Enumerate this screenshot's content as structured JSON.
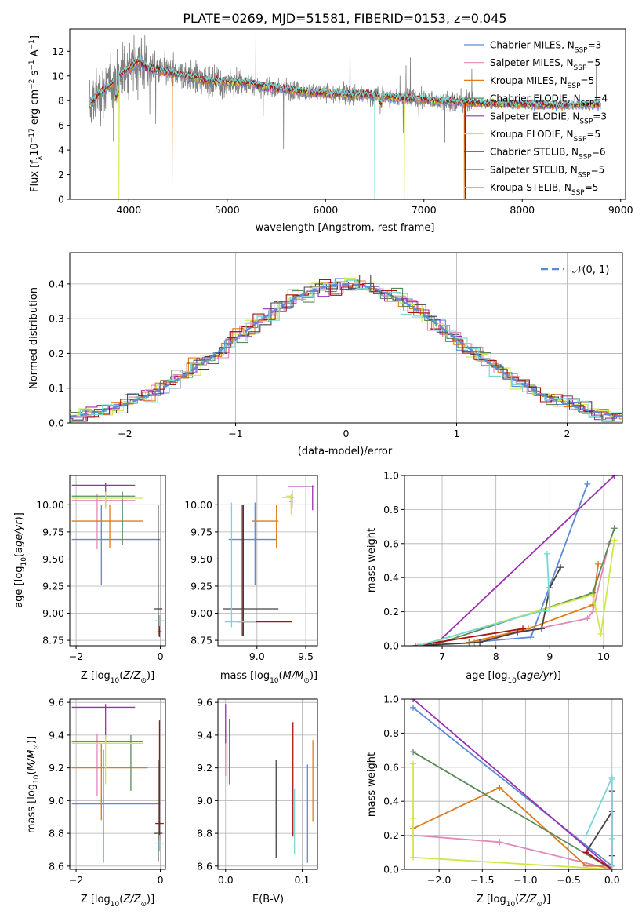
{
  "title": "PLATE=0269, MJD=51581, FIBERID=0153, z=0.045",
  "colors": {
    "chabrier_miles": "#5b8ad7",
    "salpeter_miles": "#e389b9",
    "kroupa_miles": "#e07b1a",
    "chabrier_elodie": "#5a8a5a",
    "salpeter_elodie": "#9b30b0",
    "kroupa_elodie": "#d2e64a",
    "chabrier_stelib": "#444444",
    "salpeter_stelib": "#aa1111",
    "kroupa_stelib": "#7ad6d6",
    "data": "#808080"
  },
  "chart_data": [
    {
      "type": "line",
      "id": "spectrum",
      "xlabel": "wavelength [Angstrom, rest frame]",
      "ylabel": "Flux [f_λ10^-17 erg cm^-2 s^-1 A^-1]",
      "xlim": [
        3400,
        9050
      ],
      "ylim": [
        0,
        13.8
      ],
      "xticks": [
        4000,
        5000,
        6000,
        7000,
        8000,
        9000
      ],
      "yticks": [
        0,
        2,
        4,
        6,
        8,
        10,
        12
      ],
      "legend_position": "top-right",
      "legend": [
        {
          "imf": "Chabrier",
          "lib": "MILES",
          "nssp": "3",
          "color_key": "chabrier_miles"
        },
        {
          "imf": "Salpeter",
          "lib": "MILES",
          "nssp": "5",
          "color_key": "salpeter_miles"
        },
        {
          "imf": "Kroupa",
          "lib": "MILES",
          "nssp": "5",
          "color_key": "kroupa_miles"
        },
        {
          "imf": "Chabrier",
          "lib": "ELODIE",
          "nssp": "4",
          "color_key": "chabrier_elodie"
        },
        {
          "imf": "Salpeter",
          "lib": "ELODIE",
          "nssp": "3",
          "color_key": "salpeter_elodie"
        },
        {
          "imf": "Kroupa",
          "lib": "ELODIE",
          "nssp": "5",
          "color_key": "kroupa_elodie"
        },
        {
          "imf": "Chabrier",
          "lib": "STELIB",
          "nssp": "6",
          "color_key": "chabrier_stelib"
        },
        {
          "imf": "Salpeter",
          "lib": "STELIB",
          "nssp": "5",
          "color_key": "salpeter_stelib"
        },
        {
          "imf": "Kroupa",
          "lib": "STELIB",
          "nssp": "5",
          "color_key": "kroupa_stelib"
        }
      ],
      "data_continuum": [
        [
          3620,
          7.8
        ],
        [
          3700,
          8.6
        ],
        [
          3800,
          9.2
        ],
        [
          3900,
          10.0
        ],
        [
          4000,
          10.6
        ],
        [
          4100,
          11.2
        ],
        [
          4200,
          10.6
        ],
        [
          4400,
          10.3
        ],
        [
          4600,
          10.0
        ],
        [
          4800,
          9.6
        ],
        [
          5000,
          9.5
        ],
        [
          5200,
          9.4
        ],
        [
          5400,
          9.1
        ],
        [
          5600,
          8.9
        ],
        [
          5800,
          8.7
        ],
        [
          6000,
          8.6
        ],
        [
          6200,
          8.5
        ],
        [
          6500,
          8.4
        ],
        [
          6800,
          8.2
        ],
        [
          7000,
          8.1
        ],
        [
          7300,
          7.9
        ],
        [
          7600,
          7.8
        ],
        [
          8000,
          7.7
        ],
        [
          8400,
          7.6
        ],
        [
          8800,
          7.7
        ]
      ],
      "data_xrange": [
        3600,
        8800
      ],
      "model_xrange": [
        3600,
        8800
      ],
      "model_breaks": [
        {
          "color_key": "kroupa_elodie",
          "x": 3900
        },
        {
          "color_key": "kroupa_miles",
          "x": 4440
        },
        {
          "color_key": "kroupa_stelib",
          "x": 6500
        },
        {
          "color_key": "kroupa_elodie",
          "x": 6800
        },
        {
          "color_key": "kroupa_miles",
          "x": 7410
        },
        {
          "color_key": "salpeter_stelib",
          "x": 7420
        }
      ]
    },
    {
      "type": "line",
      "id": "residuals",
      "xlabel": "(data-model)/error",
      "ylabel": "Normed distribution",
      "xlim": [
        -2.5,
        2.5
      ],
      "ylim": [
        0,
        0.49
      ],
      "xticks": [
        -2,
        -1,
        0,
        1,
        2
      ],
      "yticks": [
        0.0,
        0.1,
        0.2,
        0.3,
        0.4
      ],
      "grid": true,
      "legend_position": "top-right",
      "legend_label": "𝒩(0, 1)",
      "bin_width": 0.1,
      "histograms": "one step histogram per fit, approximating N(0,1) with scatter of about 0.03"
    },
    {
      "type": "scatter",
      "id": "age_vs_Z",
      "xlabel": "Z [log10(Z/Z☉)]",
      "ylabel": "age [log10(age/yr)]",
      "xlim": [
        -2.15,
        0.12
      ],
      "ylim": [
        8.7,
        10.27
      ],
      "xticks": [
        -2,
        0
      ],
      "yticks": [
        8.75,
        9.0,
        9.25,
        9.5,
        9.75,
        10.0
      ],
      "grid": true,
      "points": [
        {
          "color_key": "chabrier_miles",
          "x": -1.4,
          "xerr": [
            0.7,
            1.4
          ],
          "y": 9.68,
          "yerr": [
            0.42,
            0.32
          ]
        },
        {
          "color_key": "salpeter_miles",
          "x": -1.5,
          "xerr": [
            0.6,
            0.9
          ],
          "y": 10.04,
          "yerr": [
            0.45,
            0.06
          ]
        },
        {
          "color_key": "kroupa_miles",
          "x": -1.2,
          "xerr": [
            0.9,
            0.8
          ],
          "y": 9.85,
          "yerr": [
            0.25,
            0.15
          ]
        },
        {
          "color_key": "chabrier_elodie",
          "x": -0.9,
          "xerr": [
            1.2,
            0.3
          ],
          "y": 10.08,
          "yerr": [
            0.45,
            0.04
          ]
        },
        {
          "color_key": "salpeter_elodie",
          "x": -1.3,
          "xerr": [
            0.8,
            0.7
          ],
          "y": 10.18,
          "yerr": [
            0.2,
            0.02
          ]
        },
        {
          "color_key": "kroupa_elodie",
          "x": -1.3,
          "xerr": [
            0.8,
            0.9
          ],
          "y": 10.06,
          "yerr": [
            0.1,
            0.06
          ]
        },
        {
          "color_key": "chabrier_stelib",
          "x": -0.05,
          "xerr": [
            0.1,
            0.1
          ],
          "y": 9.04,
          "yerr": [
            0.25,
            0.96
          ]
        },
        {
          "color_key": "salpeter_stelib",
          "x": -0.02,
          "xerr": [
            0.05,
            0.05
          ],
          "y": 8.83,
          "yerr": [
            0.05,
            0.15
          ]
        },
        {
          "color_key": "kroupa_stelib",
          "x": -0.02,
          "xerr": [
            0.1,
            0.12
          ],
          "y": 8.93,
          "yerr": [
            0.05,
            0.05
          ]
        }
      ]
    },
    {
      "type": "scatter",
      "id": "age_vs_mass",
      "xlabel": "mass [log10(M/M☉)]",
      "ylabel": "",
      "xlim": [
        8.6,
        9.62
      ],
      "ylim": [
        8.7,
        10.27
      ],
      "xticks": [
        9.0,
        9.5
      ],
      "yticks": [
        8.75,
        9.0,
        9.25,
        9.5,
        9.75,
        10.0
      ],
      "grid": true,
      "points": [
        {
          "color_key": "chabrier_miles",
          "x": 8.98,
          "xerr": [
            0.27,
            0.22
          ],
          "y": 9.68,
          "yerr": [
            0.42,
            0.34
          ]
        },
        {
          "color_key": "salpeter_miles",
          "x": 9.35,
          "xerr": [
            0.02,
            0.02
          ],
          "y": 10.03,
          "yerr": [
            0.05,
            0.05
          ]
        },
        {
          "color_key": "kroupa_miles",
          "x": 9.2,
          "xerr": [
            0.25,
            0.02
          ],
          "y": 9.85,
          "yerr": [
            0.25,
            0.15
          ]
        },
        {
          "color_key": "chabrier_elodie",
          "x": 9.36,
          "xerr": [
            0.1,
            0.02
          ],
          "y": 10.07,
          "yerr": [
            0.1,
            0.06
          ]
        },
        {
          "color_key": "salpeter_elodie",
          "x": 9.57,
          "xerr": [
            0.25,
            0.02
          ],
          "y": 10.17,
          "yerr": [
            0.22,
            0.01
          ]
        },
        {
          "color_key": "kroupa_elodie",
          "x": 9.35,
          "xerr": [
            0.05,
            0.02
          ],
          "y": 10.08,
          "yerr": [
            0.17,
            0.02
          ]
        },
        {
          "color_key": "chabrier_stelib",
          "x": 8.85,
          "xerr": [
            0.2,
            0.37
          ],
          "y": 9.04,
          "yerr": [
            0.25,
            0.96
          ]
        },
        {
          "color_key": "salpeter_stelib",
          "x": 8.86,
          "xerr": [
            0.06,
            0.5
          ],
          "y": 8.92,
          "yerr": [
            0.13,
            1.08
          ]
        },
        {
          "color_key": "kroupa_stelib",
          "x": 8.74,
          "xerr": [
            0.07,
            0.25
          ],
          "y": 8.92,
          "yerr": [
            0.05,
            1.1
          ]
        }
      ]
    },
    {
      "type": "line",
      "id": "mass_weight_vs_age",
      "xlabel": "age [log10(age/yr)]",
      "ylabel": "mass weight",
      "xlim": [
        6.3,
        10.35
      ],
      "ylim": [
        0,
        1.0
      ],
      "xticks": [
        7,
        8,
        9,
        10
      ],
      "yticks": [
        0.0,
        0.2,
        0.4,
        0.6,
        0.8,
        1.0
      ],
      "grid": true,
      "series": [
        {
          "color_key": "chabrier_miles",
          "x": [
            7.5,
            8.65,
            9.7
          ],
          "y": [
            0.02,
            0.05,
            0.95
          ]
        },
        {
          "color_key": "salpeter_miles",
          "x": [
            7.6,
            8.0,
            9.7,
            9.8,
            10.1
          ],
          "y": [
            0.02,
            0.05,
            0.16,
            0.2,
            0.6
          ]
        },
        {
          "color_key": "kroupa_miles",
          "x": [
            7.5,
            8.6,
            9.8,
            9.9
          ],
          "y": [
            0.02,
            0.1,
            0.24,
            0.48
          ]
        },
        {
          "color_key": "chabrier_elodie",
          "x": [
            6.8,
            9.8,
            10.2
          ],
          "y": [
            0.0,
            0.31,
            0.69
          ]
        },
        {
          "color_key": "salpeter_elodie",
          "x": [
            6.85,
            10.2
          ],
          "y": [
            0.0,
            1.0
          ]
        },
        {
          "color_key": "kroupa_elodie",
          "x": [
            6.6,
            9.8,
            9.95,
            10.2
          ],
          "y": [
            0.0,
            0.3,
            0.07,
            0.62
          ]
        },
        {
          "color_key": "chabrier_stelib",
          "x": [
            6.5,
            7.7,
            8.4,
            8.85,
            9.0,
            9.2
          ],
          "y": [
            0.0,
            0.02,
            0.08,
            0.1,
            0.34,
            0.46
          ]
        },
        {
          "color_key": "salpeter_stelib",
          "x": [
            6.5,
            8.5
          ],
          "y": [
            0.0,
            0.1
          ]
        },
        {
          "color_key": "kroupa_stelib",
          "x": [
            6.55,
            8.8,
            9.0,
            8.95
          ],
          "y": [
            0.0,
            0.2,
            0.21,
            0.54
          ]
        }
      ]
    },
    {
      "type": "scatter",
      "id": "mass_vs_Z",
      "xlabel": "Z [log10(Z/Z☉)]",
      "ylabel": "mass [log10(M/M☉)]",
      "xlim": [
        -2.15,
        0.12
      ],
      "ylim": [
        8.58,
        9.62
      ],
      "xticks": [
        -2,
        0
      ],
      "yticks": [
        8.6,
        8.8,
        9.0,
        9.2,
        9.4,
        9.6
      ],
      "grid": true,
      "points": [
        {
          "color_key": "chabrier_miles",
          "x": -1.35,
          "xerr": [
            0.75,
            1.35
          ],
          "y": 8.98,
          "yerr": [
            0.36,
            0.33
          ]
        },
        {
          "color_key": "salpeter_miles",
          "x": -1.5,
          "xerr": [
            0.6,
            1.0
          ],
          "y": 9.36,
          "yerr": [
            0.33,
            0.05
          ]
        },
        {
          "color_key": "kroupa_miles",
          "x": -1.4,
          "xerr": [
            0.7,
            1.1
          ],
          "y": 9.2,
          "yerr": [
            0.32,
            0.15
          ]
        },
        {
          "color_key": "chabrier_elodie",
          "x": -0.7,
          "xerr": [
            1.4,
            0.3
          ],
          "y": 9.36,
          "yerr": [
            0.3,
            0.04
          ]
        },
        {
          "color_key": "salpeter_elodie",
          "x": -1.3,
          "xerr": [
            0.8,
            0.7
          ],
          "y": 9.57,
          "yerr": [
            0.2,
            0.02
          ]
        },
        {
          "color_key": "kroupa_elodie",
          "x": -1.3,
          "xerr": [
            0.8,
            0.9
          ],
          "y": 9.35,
          "yerr": [
            0.25,
            0.05
          ]
        },
        {
          "color_key": "chabrier_stelib",
          "x": -0.05,
          "xerr": [
            0.1,
            0.1
          ],
          "y": 8.8,
          "yerr": [
            0.17,
            0.45
          ]
        },
        {
          "color_key": "salpeter_stelib",
          "x": -0.02,
          "xerr": [
            0.1,
            0.1
          ],
          "y": 8.86,
          "yerr": [
            0.1,
            0.63
          ]
        },
        {
          "color_key": "kroupa_stelib",
          "x": -0.02,
          "xerr": [
            0.1,
            0.1
          ],
          "y": 8.74,
          "yerr": [
            0.05,
            0.05
          ]
        }
      ]
    },
    {
      "type": "scatter",
      "id": "mass_vs_ebv",
      "xlabel": "E(B-V)",
      "ylabel": "",
      "xlim": [
        -0.01,
        0.12
      ],
      "ylim": [
        8.58,
        9.62
      ],
      "xticks": [
        0.0,
        0.1
      ],
      "yticks": [
        8.6,
        8.8,
        9.0,
        9.2,
        9.4,
        9.6
      ],
      "grid": true,
      "points": [
        {
          "color_key": "chabrier_miles",
          "x": 0.107,
          "yerr": [
            0.3,
            0.3
          ],
          "y": 8.92
        },
        {
          "color_key": "salpeter_miles",
          "x": 0.0,
          "yerr": [
            0.15,
            0.15
          ],
          "y": 9.3
        },
        {
          "color_key": "kroupa_miles",
          "x": 0.114,
          "yerr": [
            0.25,
            0.25
          ],
          "y": 9.12
        },
        {
          "color_key": "chabrier_elodie",
          "x": 0.005,
          "yerr": [
            0.2,
            0.2
          ],
          "y": 9.3
        },
        {
          "color_key": "salpeter_elodie",
          "x": 0.0,
          "yerr": [
            0.12,
            0.12
          ],
          "y": 9.47
        },
        {
          "color_key": "kroupa_elodie",
          "x": 0.002,
          "yerr": [
            0.15,
            0.15
          ],
          "y": 9.25
        },
        {
          "color_key": "chabrier_stelib",
          "x": 0.066,
          "yerr": [
            0.3,
            0.3
          ],
          "y": 8.95
        },
        {
          "color_key": "salpeter_stelib",
          "x": 0.088,
          "yerr": [
            0.35,
            0.35
          ],
          "y": 9.13
        },
        {
          "color_key": "kroupa_stelib",
          "x": 0.09,
          "yerr": [
            0.2,
            0.2
          ],
          "y": 8.87
        }
      ]
    },
    {
      "type": "line",
      "id": "mass_weight_vs_Z",
      "xlabel": "Z [log10(Z/Z☉)]",
      "ylabel": "mass weight",
      "xlim": [
        -2.4,
        0.12
      ],
      "ylim": [
        0,
        1.0
      ],
      "xticks": [
        -2.0,
        -1.5,
        -1.0,
        -0.5,
        0.0
      ],
      "yticks": [
        0.0,
        0.2,
        0.4,
        0.6,
        0.8,
        1.0
      ],
      "grid": true,
      "series": [
        {
          "color_key": "chabrier_miles",
          "x": [
            -2.3,
            0.0
          ],
          "y": [
            0.95,
            0.02
          ]
        },
        {
          "color_key": "salpeter_miles",
          "x": [
            -2.3,
            -1.3,
            0.0
          ],
          "y": [
            0.2,
            0.16,
            0.0
          ]
        },
        {
          "color_key": "kroupa_miles",
          "x": [
            -2.3,
            -1.3,
            -0.3,
            0.0
          ],
          "y": [
            0.24,
            0.48,
            0.02,
            0.02
          ]
        },
        {
          "color_key": "chabrier_elodie",
          "x": [
            -2.3,
            0.0
          ],
          "y": [
            0.69,
            0.0
          ]
        },
        {
          "color_key": "salpeter_elodie",
          "x": [
            -2.3,
            0.0
          ],
          "y": [
            1.0,
            0.0
          ]
        },
        {
          "color_key": "kroupa_elodie",
          "x": [
            -2.3,
            -2.3,
            -2.3,
            0.0
          ],
          "y": [
            0.62,
            0.3,
            0.07,
            0.0
          ]
        },
        {
          "color_key": "chabrier_stelib",
          "x": [
            -0.3,
            0.0,
            0.0,
            0.0,
            0.0
          ],
          "y": [
            0.1,
            0.34,
            0.46,
            0.08,
            0.02
          ]
        },
        {
          "color_key": "salpeter_stelib",
          "x": [
            -0.3,
            0.0
          ],
          "y": [
            0.1,
            0.0
          ]
        },
        {
          "color_key": "kroupa_stelib",
          "x": [
            -0.3,
            0.0,
            0.0,
            0.0,
            0.0
          ],
          "y": [
            0.2,
            0.54,
            0.53,
            0.18,
            0.02
          ]
        }
      ]
    }
  ]
}
